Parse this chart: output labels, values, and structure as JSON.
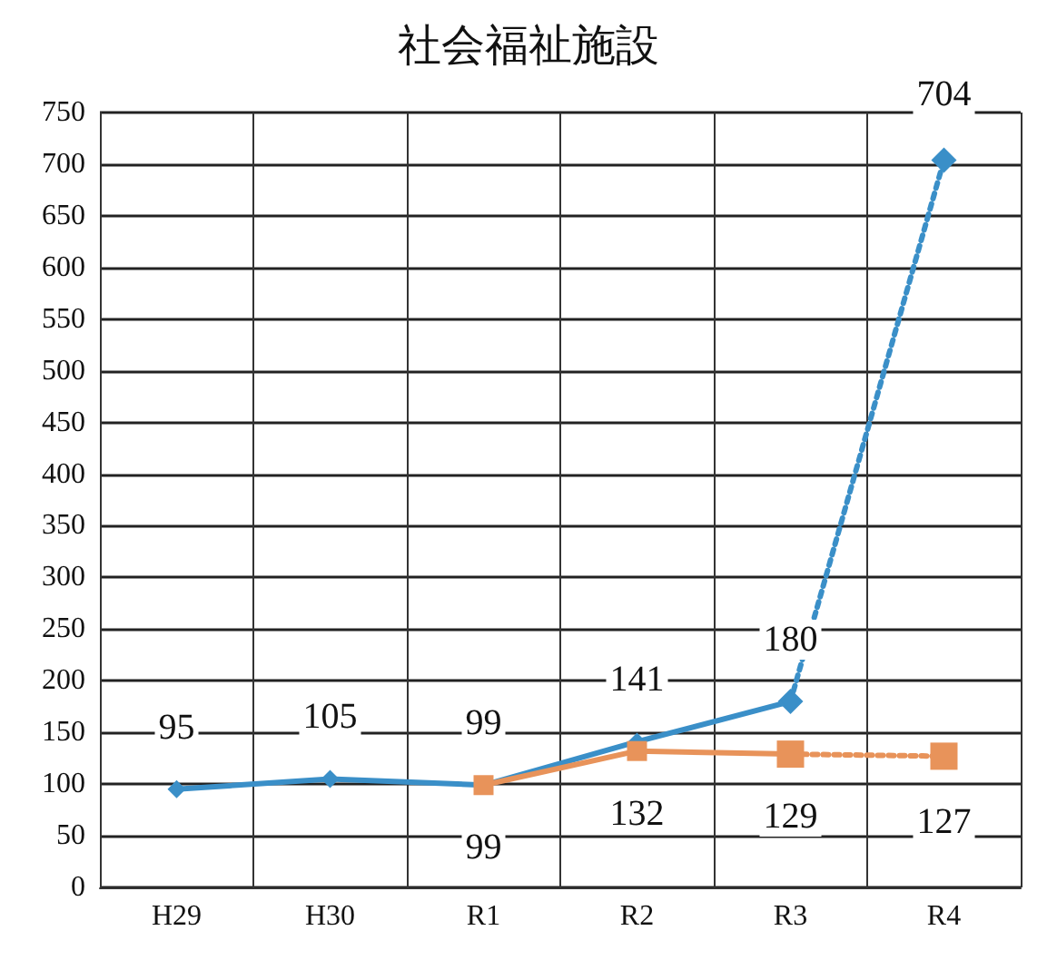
{
  "chart_data": {
    "type": "line",
    "title": "社会福祉施設",
    "categories": [
      "H29",
      "H30",
      "R1",
      "R2",
      "R3",
      "R4"
    ],
    "ylim": [
      0,
      750
    ],
    "yticks": [
      0,
      50,
      100,
      150,
      200,
      250,
      300,
      350,
      400,
      450,
      500,
      550,
      600,
      650,
      700,
      750
    ],
    "grid": true,
    "series": [
      {
        "color": "#3a8fc8",
        "marker": "diamond",
        "line_style": "solid",
        "values": [
          95,
          105,
          99,
          141,
          180,
          null
        ],
        "value_labels": [
          "95",
          "105",
          "99",
          "141",
          "180",
          null
        ]
      },
      {
        "color": "#3a8fc8",
        "marker": "diamond",
        "line_style": "dotted",
        "values": [
          null,
          null,
          null,
          null,
          180,
          704
        ],
        "value_labels": [
          null,
          null,
          null,
          null,
          null,
          "704"
        ]
      },
      {
        "color": "#e8935a",
        "marker": "square",
        "line_style": "solid",
        "values": [
          null,
          null,
          99,
          132,
          129,
          null
        ],
        "value_labels": [
          null,
          null,
          "99",
          "132",
          "129",
          null
        ]
      },
      {
        "color": "#e8935a",
        "marker": "square",
        "line_style": "dotted",
        "values": [
          null,
          null,
          null,
          null,
          129,
          127
        ],
        "value_labels": [
          null,
          null,
          null,
          null,
          null,
          "127"
        ]
      }
    ]
  }
}
